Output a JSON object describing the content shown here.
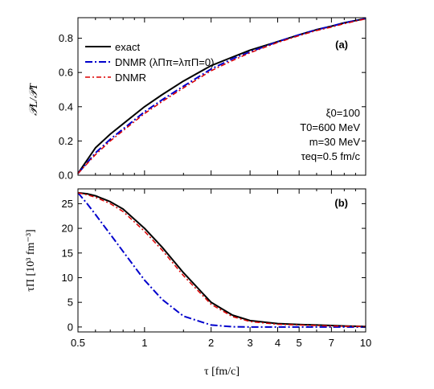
{
  "chart_data": [
    {
      "panel": "(a)",
      "type": "line",
      "ylabel": "𝒫L/𝒫T",
      "ylim": [
        0,
        0.92
      ],
      "yticks": [
        "0.0",
        "0.2",
        "0.4",
        "0.6",
        "0.8"
      ],
      "x_scale": "log",
      "xlim": [
        0.5,
        10
      ],
      "legend": {
        "placement": "top-left",
        "entries": [
          "exact",
          "DNMR (λΠπ=λπΠ=0)",
          "DNMR"
        ]
      },
      "annotations": [
        "ξ0=100",
        "T0=600 MeV",
        "m=30 MeV",
        "τeq=0.5 fm/c"
      ],
      "series": [
        {
          "name": "exact",
          "color": "#000000",
          "style": "solid",
          "x": [
            0.5,
            0.6,
            0.7,
            0.8,
            1.0,
            1.2,
            1.5,
            2.0,
            2.5,
            3.0,
            4.0,
            5.0,
            6.0,
            7.0,
            8.0,
            10.0
          ],
          "y": [
            0.01,
            0.16,
            0.24,
            0.3,
            0.4,
            0.47,
            0.55,
            0.64,
            0.69,
            0.73,
            0.78,
            0.82,
            0.85,
            0.87,
            0.89,
            0.915
          ]
        },
        {
          "name": "DNMR (λΠπ=λπΠ=0)",
          "color": "#0000cc",
          "style": "dashdot",
          "x": [
            0.5,
            0.6,
            0.7,
            0.8,
            1.0,
            1.2,
            1.5,
            2.0,
            2.5,
            3.0,
            4.0,
            5.0,
            6.0,
            7.0,
            8.0,
            10.0
          ],
          "y": [
            0.01,
            0.13,
            0.21,
            0.27,
            0.37,
            0.44,
            0.52,
            0.62,
            0.68,
            0.72,
            0.78,
            0.82,
            0.85,
            0.87,
            0.89,
            0.915
          ]
        },
        {
          "name": "DNMR",
          "color": "#dd0000",
          "style": "dashed",
          "x": [
            0.5,
            0.6,
            0.7,
            0.8,
            1.0,
            1.2,
            1.5,
            2.0,
            2.5,
            3.0,
            4.0,
            5.0,
            6.0,
            7.0,
            8.0,
            10.0
          ],
          "y": [
            0.01,
            0.12,
            0.2,
            0.26,
            0.36,
            0.43,
            0.51,
            0.61,
            0.67,
            0.715,
            0.775,
            0.815,
            0.845,
            0.865,
            0.885,
            0.913
          ]
        }
      ]
    },
    {
      "panel": "(b)",
      "type": "line",
      "ylabel": "τΠ [10³ fm⁻³]",
      "ylim": [
        -1,
        28
      ],
      "yticks": [
        "0",
        "5",
        "10",
        "15",
        "20",
        "25"
      ],
      "x_scale": "log",
      "xlim": [
        0.5,
        10
      ],
      "xticks": [
        "0.5",
        "1",
        "2",
        "3",
        "4",
        "5",
        "7",
        "10"
      ],
      "xlabel": "τ [fm/c]",
      "series": [
        {
          "name": "exact",
          "color": "#000000",
          "style": "solid",
          "x": [
            0.5,
            0.55,
            0.6,
            0.7,
            0.8,
            1.0,
            1.2,
            1.5,
            2.0,
            2.5,
            3.0,
            4.0,
            5.0,
            6.0,
            7.0,
            8.0,
            10.0
          ],
          "y": [
            27.2,
            27.0,
            26.6,
            25.4,
            23.9,
            20.0,
            16.2,
            11.0,
            5.0,
            2.4,
            1.3,
            0.7,
            0.5,
            0.4,
            0.3,
            0.2,
            0.1
          ]
        },
        {
          "name": "DNMR (λΠπ=λπΠ=0)",
          "color": "#0000cc",
          "style": "dashdot",
          "x": [
            0.5,
            0.55,
            0.6,
            0.7,
            0.8,
            1.0,
            1.2,
            1.5,
            2.0,
            2.5,
            3.0,
            4.0,
            5.0,
            6.0,
            7.0,
            8.0,
            10.0
          ],
          "y": [
            27.2,
            25.0,
            22.8,
            18.8,
            15.3,
            9.5,
            5.6,
            2.2,
            0.4,
            0.05,
            0.0,
            0.0,
            0.0,
            0.0,
            0.0,
            0.0,
            0.0
          ]
        },
        {
          "name": "DNMR",
          "color": "#dd0000",
          "style": "dashed",
          "x": [
            0.5,
            0.55,
            0.6,
            0.7,
            0.8,
            1.0,
            1.2,
            1.5,
            2.0,
            2.5,
            3.0,
            4.0,
            5.0,
            6.0,
            7.0,
            8.0,
            10.0
          ],
          "y": [
            27.2,
            26.8,
            26.3,
            25.0,
            23.4,
            19.4,
            15.6,
            10.4,
            4.6,
            2.1,
            1.1,
            0.55,
            0.4,
            0.3,
            0.2,
            0.15,
            0.1
          ]
        }
      ]
    }
  ]
}
